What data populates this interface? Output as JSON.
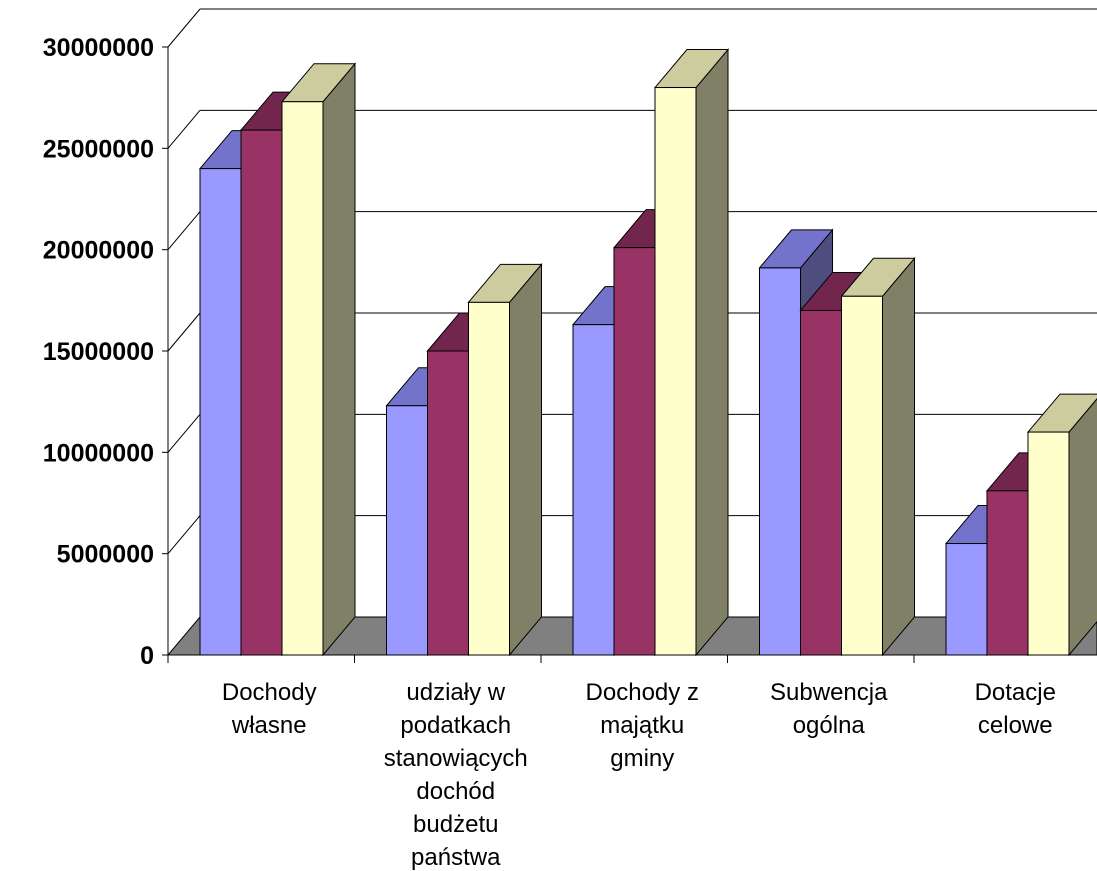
{
  "chart_data": {
    "type": "bar",
    "three_d": true,
    "title": "",
    "xlabel": "",
    "ylabel": "",
    "ylim": [
      0,
      30000000
    ],
    "y_ticks": [
      0,
      5000000,
      10000000,
      15000000,
      20000000,
      25000000,
      30000000
    ],
    "y_tick_labels": [
      "0",
      "5000000",
      "10000000",
      "15000000",
      "20000000",
      "25000000",
      "30000000"
    ],
    "grid": true,
    "legend": "none",
    "categories": [
      "Dochody własne",
      "udziały w podatkach stanowiących dochód budżetu państwa",
      "Dochody z majątku gminy",
      "Subwencja ogólna",
      "Dotacje celowe"
    ],
    "category_lines": [
      [
        "Dochody",
        "własne"
      ],
      [
        "udziały w",
        "podatkach",
        "stanowiących",
        "dochód",
        "budżetu",
        "państwa"
      ],
      [
        "Dochody z",
        "majątku",
        "gminy"
      ],
      [
        "Subwencja",
        "ogólna"
      ],
      [
        "Dotacje",
        "celowe"
      ]
    ],
    "series": [
      {
        "values": [
          24000000,
          12300000,
          16300000,
          19100000,
          5500000
        ]
      },
      {
        "values": [
          25900000,
          15000000,
          20100000,
          17000000,
          8100000
        ]
      },
      {
        "values": [
          27300000,
          17400000,
          28000000,
          17700000,
          11000000
        ]
      }
    ],
    "colors": {
      "series_front": [
        "#9999ff",
        "#993366",
        "#ffffcc"
      ],
      "series_top": [
        "#7373cc",
        "#73264d",
        "#cccc9f"
      ],
      "series_side": [
        "#4d4d80",
        "#4d1a33",
        "#808066"
      ],
      "floor": "#808080",
      "grid": "#000000"
    }
  }
}
